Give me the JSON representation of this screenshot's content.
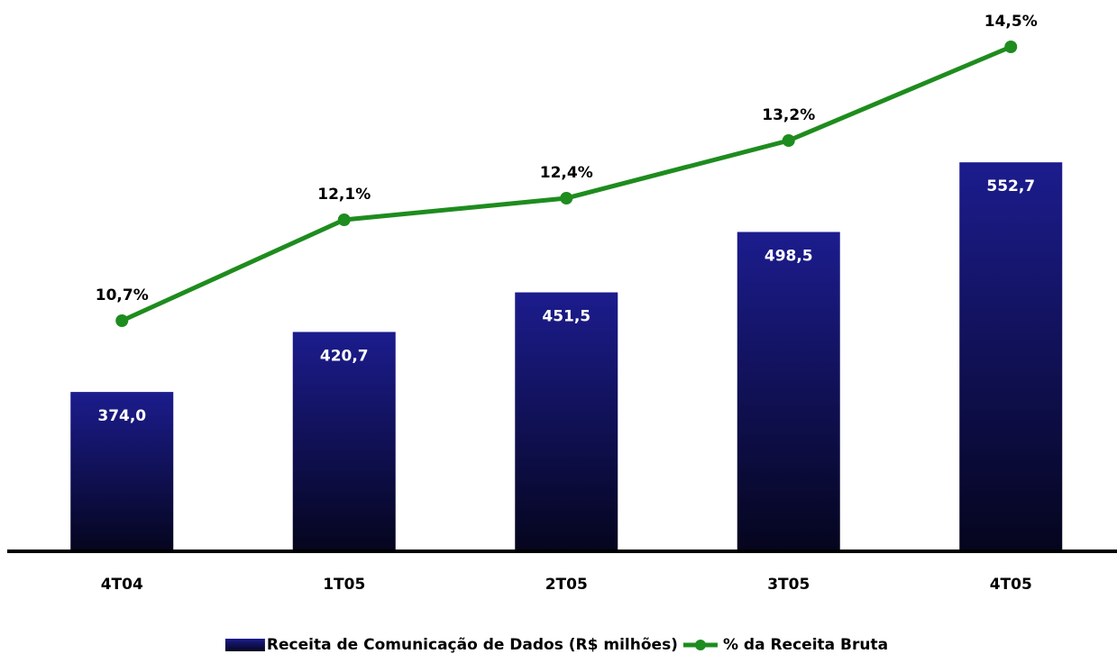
{
  "chart_data": {
    "type": "bar",
    "categories": [
      "4T04",
      "1T05",
      "2T05",
      "3T05",
      "4T05"
    ],
    "series": [
      {
        "name": "Receita de Comunicação de Dados (R$ milhões)",
        "type": "bar",
        "color": "#1c1c8e",
        "values": [
          374.0,
          420.7,
          451.5,
          498.5,
          552.7
        ],
        "value_labels": [
          "374,0",
          "420,7",
          "451,5",
          "498,5",
          "552,7"
        ]
      },
      {
        "name": "% da Receita Bruta",
        "type": "line",
        "axis": "y2",
        "color": "#1e8c1e",
        "values": [
          10.7,
          12.1,
          12.4,
          13.2,
          14.5
        ],
        "value_labels": [
          "10,7%",
          "12,1%",
          "12,4%",
          "13,2%",
          "14,5%"
        ]
      }
    ],
    "ylim": [
      250,
      665
    ],
    "y2lim": [
      7.5,
      14.9
    ],
    "legend": "bottom"
  }
}
